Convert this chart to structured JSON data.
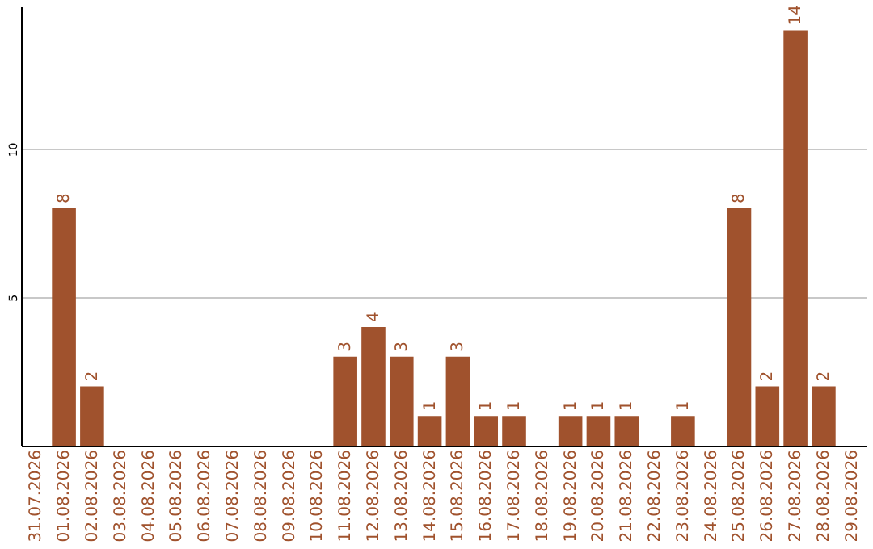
{
  "chart_data": {
    "type": "bar",
    "categories": [
      "31.07.2026",
      "01.08.2026",
      "02.08.2026",
      "03.08.2026",
      "04.08.2026",
      "05.08.2026",
      "06.08.2026",
      "07.08.2026",
      "08.08.2026",
      "09.08.2026",
      "10.08.2026",
      "11.08.2026",
      "12.08.2026",
      "13.08.2026",
      "14.08.2026",
      "15.08.2026",
      "16.08.2026",
      "17.08.2026",
      "18.08.2026",
      "19.08.2026",
      "20.08.2026",
      "21.08.2026",
      "22.08.2026",
      "23.08.2026",
      "24.08.2026",
      "25.08.2026",
      "26.08.2026",
      "27.08.2026",
      "28.08.2026",
      "29.08.2026"
    ],
    "values": [
      null,
      8,
      2,
      null,
      null,
      null,
      null,
      null,
      null,
      null,
      null,
      3,
      4,
      3,
      1,
      3,
      1,
      1,
      null,
      1,
      1,
      1,
      null,
      1,
      null,
      8,
      2,
      14,
      2,
      null
    ],
    "color": "#a0522d",
    "ylim": [
      0,
      14.8
    ],
    "yticks": [
      5,
      10
    ],
    "grid": "y",
    "data_labels": true
  }
}
